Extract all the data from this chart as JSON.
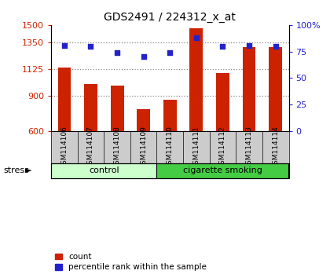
{
  "title": "GDS2491 / 224312_x_at",
  "samples": [
    "GSM114106",
    "GSM114107",
    "GSM114108",
    "GSM114109",
    "GSM114110",
    "GSM114111",
    "GSM114112",
    "GSM114113",
    "GSM114114"
  ],
  "counts": [
    1140,
    1000,
    985,
    790,
    870,
    1470,
    1095,
    1310,
    1310
  ],
  "percentiles": [
    81,
    80,
    74,
    70,
    74,
    88,
    80,
    81,
    80
  ],
  "groups": [
    {
      "label": "control",
      "start": 0,
      "end": 4,
      "color": "#ccffcc"
    },
    {
      "label": "cigarette smoking",
      "start": 4,
      "end": 9,
      "color": "#44cc44"
    }
  ],
  "ylim_left": [
    600,
    1500
  ],
  "yticks_left": [
    600,
    900,
    1125,
    1350,
    1500
  ],
  "ylim_right": [
    0,
    100
  ],
  "yticks_right": [
    0,
    25,
    50,
    75,
    100
  ],
  "bar_color": "#cc2200",
  "dot_color": "#2222cc",
  "bar_width": 0.5,
  "grid_yticks": [
    900,
    1125,
    1350
  ],
  "grid_color": "#888888",
  "bg_label": "#cccccc",
  "stress_label": "stress",
  "stress_arrow": "►",
  "legend_items": [
    "count",
    "percentile rank within the sample"
  ]
}
